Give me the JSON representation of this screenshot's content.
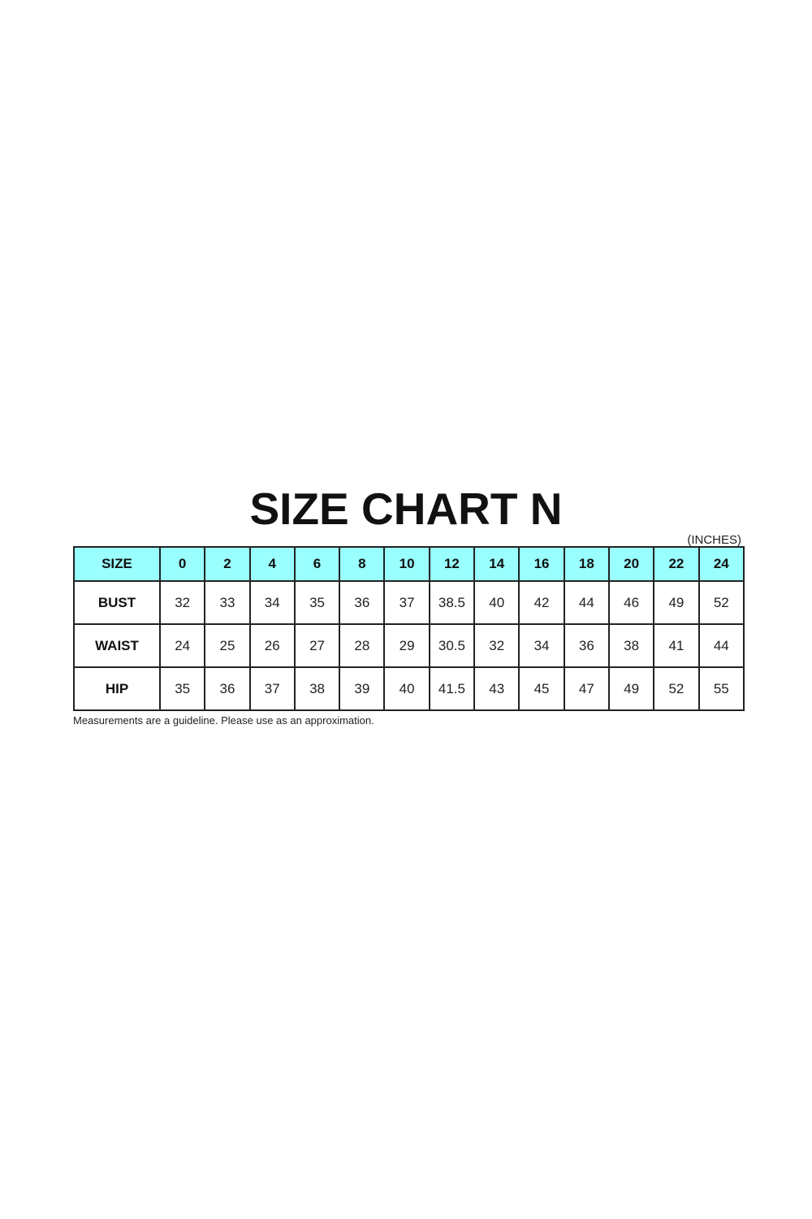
{
  "title": "SIZE CHART N",
  "unit": "(INCHES)",
  "header_color": "#99ffff",
  "table": {
    "header": [
      "SIZE",
      "0",
      "2",
      "4",
      "6",
      "8",
      "10",
      "12",
      "14",
      "16",
      "18",
      "20",
      "22",
      "24"
    ],
    "rows": [
      {
        "label": "BUST",
        "values": [
          "32",
          "33",
          "34",
          "35",
          "36",
          "37",
          "38.5",
          "40",
          "42",
          "44",
          "46",
          "49",
          "52"
        ]
      },
      {
        "label": "WAIST",
        "values": [
          "24",
          "25",
          "26",
          "27",
          "28",
          "29",
          "30.5",
          "32",
          "34",
          "36",
          "38",
          "41",
          "44"
        ]
      },
      {
        "label": "HIP",
        "values": [
          "35",
          "36",
          "37",
          "38",
          "39",
          "40",
          "41.5",
          "43",
          "45",
          "47",
          "49",
          "52",
          "55"
        ]
      }
    ]
  },
  "note": "Measurements are a guideline. Please use as an approximation."
}
